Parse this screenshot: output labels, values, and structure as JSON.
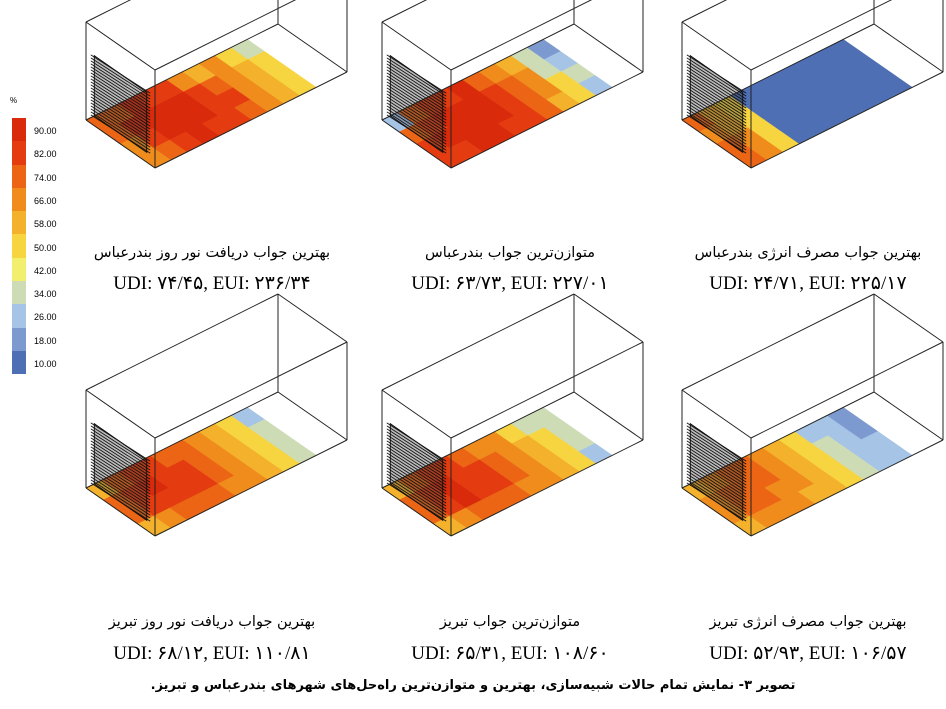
{
  "legend": {
    "unit": "%",
    "ticks": [
      "90.00",
      "82.00",
      "74.00",
      "66.00",
      "58.00",
      "50.00",
      "42.00",
      "34.00",
      "26.00",
      "18.00",
      "10.00"
    ],
    "colors": [
      "#d92a0b",
      "#e43c10",
      "#ec6515",
      "#f08c1c",
      "#f4b12b",
      "#f6d540",
      "#f2ee6e",
      "#cddcb4",
      "#a6c4e6",
      "#7d9ad0",
      "#4f6fb5"
    ]
  },
  "panels": [
    {
      "title": "بهترین جواب دریافت نور روز بندرعباس",
      "metrics": "UDI: ۷۴/۴۵, EUI: ۲۳۶/۳۴",
      "grid": [
        [
          "#ec6515",
          "#ec6515",
          "#d92a0b",
          "#e43c10",
          "#e43c10",
          "#f08c1c",
          "#f4b12b",
          "#f08c1c",
          "#f6d540",
          "#cddcb4"
        ],
        [
          "#ec6515",
          "#d92a0b",
          "#d92a0b",
          "#d92a0b",
          "#d92a0b",
          "#e43c10",
          "#ec6515",
          "#f08c1c",
          "#f4b12b",
          "#f6d540"
        ],
        [
          "#f08c1c",
          "#e43c10",
          "#d92a0b",
          "#d92a0b",
          "#d92a0b",
          "#e43c10",
          "#e43c10",
          "#f08c1c",
          "#f4b12b",
          "#f6d540"
        ],
        [
          "#f08c1c",
          "#ec6515",
          "#e43c10",
          "#d92a0b",
          "#e43c10",
          "#e43c10",
          "#ec6515",
          "#f08c1c",
          "#f4b12b",
          "#f6d540"
        ]
      ]
    },
    {
      "title": "متوازن‌ترین جواب بندرعباس",
      "metrics": "UDI: ۶۳/۷۳, EUI: ۲۲۷/۰۱",
      "grid": [
        [
          "#a6c4e6",
          "#ec6515",
          "#e43c10",
          "#e43c10",
          "#d92a0b",
          "#ec6515",
          "#f08c1c",
          "#f4b12b",
          "#cddcb4",
          "#7d9ad0"
        ],
        [
          "#ec6515",
          "#e43c10",
          "#d92a0b",
          "#d92a0b",
          "#d92a0b",
          "#e43c10",
          "#ec6515",
          "#f08c1c",
          "#cddcb4",
          "#a6c4e6"
        ],
        [
          "#e43c10",
          "#d92a0b",
          "#d92a0b",
          "#d92a0b",
          "#d92a0b",
          "#e43c10",
          "#ec6515",
          "#f08c1c",
          "#f6d540",
          "#cddcb4"
        ],
        [
          "#e43c10",
          "#e43c10",
          "#d92a0b",
          "#d92a0b",
          "#e43c10",
          "#e43c10",
          "#ec6515",
          "#f4b12b",
          "#f6d540",
          "#a6c4e6"
        ]
      ]
    },
    {
      "title": "بهترین جواب مصرف انرژی بندرعباس",
      "metrics": "UDI: ۲۴/۷۱, EUI: ۲۲۵/۱۷",
      "grid": [
        [
          "#ec6515",
          "#f4b12b",
          "#f6d540",
          "#4f6fb5",
          "#4f6fb5",
          "#4f6fb5",
          "#4f6fb5",
          "#4f6fb5",
          "#4f6fb5",
          "#4f6fb5"
        ],
        [
          "#f08c1c",
          "#f4b12b",
          "#f6d540",
          "#4f6fb5",
          "#4f6fb5",
          "#4f6fb5",
          "#4f6fb5",
          "#4f6fb5",
          "#4f6fb5",
          "#4f6fb5"
        ],
        [
          "#ec6515",
          "#f08c1c",
          "#f6d540",
          "#4f6fb5",
          "#4f6fb5",
          "#4f6fb5",
          "#4f6fb5",
          "#4f6fb5",
          "#4f6fb5",
          "#4f6fb5"
        ],
        [
          "#ec6515",
          "#f08c1c",
          "#f6d540",
          "#4f6fb5",
          "#4f6fb5",
          "#4f6fb5",
          "#4f6fb5",
          "#4f6fb5",
          "#4f6fb5",
          "#4f6fb5"
        ]
      ]
    },
    {
      "title": "بهترین جواب دریافت نور روز تبریز",
      "metrics": "UDI: ۶۸/۱۲, EUI: ۱۱۰/۸۱",
      "grid": [
        [
          "#f4b12b",
          "#ec6515",
          "#e43c10",
          "#e43c10",
          "#ec6515",
          "#ec6515",
          "#f08c1c",
          "#f4b12b",
          "#f6d540",
          "#a6c4e6"
        ],
        [
          "#ec6515",
          "#e43c10",
          "#d92a0b",
          "#e43c10",
          "#e43c10",
          "#ec6515",
          "#f08c1c",
          "#f4b12b",
          "#f6d540",
          "#cddcb4"
        ],
        [
          "#ec6515",
          "#e43c10",
          "#e43c10",
          "#e43c10",
          "#e43c10",
          "#ec6515",
          "#f08c1c",
          "#f4b12b",
          "#f6d540",
          "#cddcb4"
        ],
        [
          "#f4b12b",
          "#f08c1c",
          "#ec6515",
          "#ec6515",
          "#ec6515",
          "#f08c1c",
          "#f08c1c",
          "#f4b12b",
          "#f6d540",
          "#cddcb4"
        ]
      ]
    },
    {
      "title": "متوازن‌ترین جواب تبریز",
      "metrics": "UDI: ۶۵/۳۱, EUI: ۱۰۸/۶۰",
      "grid": [
        [
          "#f4b12b",
          "#ec6515",
          "#e43c10",
          "#e43c10",
          "#ec6515",
          "#f08c1c",
          "#f08c1c",
          "#f6d540",
          "#cddcb4",
          "#cddcb4"
        ],
        [
          "#ec6515",
          "#e43c10",
          "#d92a0b",
          "#e43c10",
          "#e43c10",
          "#ec6515",
          "#f08c1c",
          "#f4b12b",
          "#f6d540",
          "#cddcb4"
        ],
        [
          "#ec6515",
          "#e43c10",
          "#d92a0b",
          "#e43c10",
          "#e43c10",
          "#ec6515",
          "#f08c1c",
          "#f4b12b",
          "#f6d540",
          "#cddcb4"
        ],
        [
          "#f4b12b",
          "#f08c1c",
          "#ec6515",
          "#ec6515",
          "#ec6515",
          "#f08c1c",
          "#f08c1c",
          "#f4b12b",
          "#f6d540",
          "#a6c4e6"
        ]
      ]
    },
    {
      "title": "بهترین جواب مصرف انرژی تبریز",
      "metrics": "UDI: ۵۲/۹۳, EUI: ۱۰۶/۵۷",
      "grid": [
        [
          "#f4b12b",
          "#f08c1c",
          "#ec6515",
          "#ec6515",
          "#f08c1c",
          "#f4b12b",
          "#f6d540",
          "#a6c4e6",
          "#a6c4e6",
          "#7d9ad0"
        ],
        [
          "#f08c1c",
          "#ec6515",
          "#ec6515",
          "#ec6515",
          "#f08c1c",
          "#f4b12b",
          "#f6d540",
          "#cddcb4",
          "#a6c4e6",
          "#7d9ad0"
        ],
        [
          "#f08c1c",
          "#ec6515",
          "#ec6515",
          "#f08c1c",
          "#f08c1c",
          "#f4b12b",
          "#f6d540",
          "#cddcb4",
          "#a6c4e6",
          "#a6c4e6"
        ],
        [
          "#f4b12b",
          "#f08c1c",
          "#f08c1c",
          "#f08c1c",
          "#f4b12b",
          "#f4b12b",
          "#f6d540",
          "#cddcb4",
          "#a6c4e6",
          "#a6c4e6"
        ]
      ]
    }
  ],
  "figure_caption": "تصویر ۳- نمایش تمام حالات شبیه‌سازی، بهترین و متوازن‌ترین راه‌حل‌های شهرهای بندرعباس و تبریز."
}
